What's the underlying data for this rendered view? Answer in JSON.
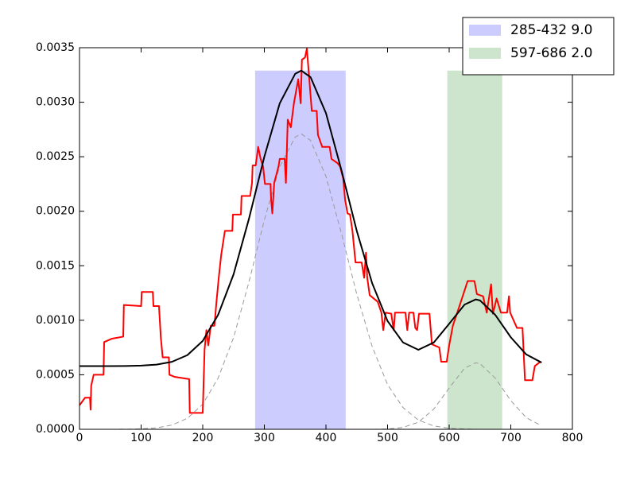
{
  "chart_data": {
    "type": "line",
    "xlim": [
      0,
      800
    ],
    "xticks": [
      0,
      100,
      200,
      300,
      400,
      500,
      600,
      700,
      800
    ],
    "ylim": [
      0,
      0.0035
    ],
    "yticks": [
      {
        "value": 0,
        "label": "0.0000"
      },
      {
        "value": 0.0005,
        "label": "0.0005"
      },
      {
        "value": 0.001,
        "label": "0.0010"
      },
      {
        "value": 0.0015,
        "label": "0.0015"
      },
      {
        "value": 0.002,
        "label": "0.0020"
      },
      {
        "value": 0.0025,
        "label": "0.0025"
      },
      {
        "value": 0.003,
        "label": "0.0030"
      },
      {
        "value": 0.0035,
        "label": "0.0035"
      }
    ],
    "legend": "upper right",
    "spans": [
      {
        "name": "285-432 9.0",
        "start": 285,
        "end": 432,
        "ymax": 0.00329,
        "color": "#ccccff"
      },
      {
        "name": "597-686 2.0",
        "start": 597,
        "end": 686,
        "ymax": 0.00329,
        "color": "#cce5cc"
      }
    ],
    "series": [
      {
        "color": "#999999",
        "style": "dashed",
        "x": [
          0,
          25,
          50,
          75,
          100,
          125,
          150,
          175,
          200,
          225,
          250,
          275,
          300,
          325,
          350,
          360,
          375,
          400,
          425,
          450,
          475,
          500,
          525,
          550,
          575,
          600,
          625,
          643,
          650,
          675,
          700,
          725,
          750
        ],
        "values": [
          0,
          0,
          0,
          1e-06,
          4e-06,
          1.3e-05,
          3.9e-05,
          0.0001,
          0.00023,
          0.00047,
          0.00084,
          0.00135,
          0.00192,
          0.00241,
          0.00268,
          0.00271,
          0.00265,
          0.00232,
          0.0018,
          0.00124,
          0.00076,
          0.00041,
          0.0002,
          8.4e-05,
          3.1e-05,
          1e-05,
          3e-06,
          1e-06,
          0,
          0,
          0,
          0,
          0
        ]
      },
      {
        "color": "#999999",
        "style": "dashed",
        "x": [
          0,
          25,
          50,
          75,
          100,
          125,
          150,
          175,
          200,
          225,
          250,
          275,
          300,
          325,
          350,
          360,
          375,
          400,
          425,
          450,
          475,
          500,
          525,
          550,
          575,
          600,
          625,
          643,
          650,
          675,
          700,
          725,
          750
        ],
        "values": [
          0,
          0,
          0,
          0,
          0,
          0,
          0,
          0,
          0,
          0,
          0,
          0,
          0,
          0,
          0,
          0,
          0,
          0,
          0,
          0,
          0,
          3e-06,
          1.7e-05,
          6.5e-05,
          0.000185,
          0.000378,
          0.000561,
          0.00061,
          0.000602,
          0.000468,
          0.000264,
          0.000107,
          3.2e-05
        ]
      },
      {
        "color": "#ff0000",
        "style": "solid",
        "width": 2,
        "x": [
          0,
          9,
          17,
          18,
          19,
          23,
          39,
          40,
          52,
          71,
          72,
          100,
          101,
          119,
          120,
          129,
          132,
          135,
          145,
          146,
          155,
          178,
          179,
          200,
          203,
          206,
          209,
          213,
          219,
          222,
          226,
          230,
          236,
          248,
          249,
          262,
          263,
          277,
          280,
          281,
          286,
          290,
          294,
          298,
          301,
          310,
          311,
          313,
          316,
          323,
          325,
          333,
          335,
          338,
          343,
          348,
          355,
          359,
          361,
          366,
          369,
          372,
          377,
          385,
          387,
          394,
          406,
          409,
          419,
          423,
          428,
          431,
          435,
          439,
          443,
          448,
          458,
          462,
          465,
          467,
          471,
          484,
          490,
          493,
          497,
          506,
          510,
          512,
          529,
          532,
          535,
          542,
          545,
          548,
          551,
          568,
          572,
          584,
          587,
          596,
          600,
          606,
          619,
          630,
          641,
          645,
          655,
          661,
          668,
          671,
          677,
          684,
          694,
          697,
          699,
          710,
          719,
          723,
          735,
          739,
          748
        ],
        "values": [
          0.00022,
          0.00029,
          0.00029,
          0.00018,
          0.0004,
          0.0005,
          0.0005,
          0.0008,
          0.00083,
          0.00085,
          0.00114,
          0.00113,
          0.00126,
          0.00126,
          0.00113,
          0.00113,
          0.00084,
          0.00066,
          0.00066,
          0.0005,
          0.00048,
          0.00046,
          0.00015,
          0.00015,
          0.00073,
          0.00091,
          0.00077,
          0.00095,
          0.00095,
          0.00115,
          0.00139,
          0.0016,
          0.00182,
          0.00182,
          0.00197,
          0.00197,
          0.00214,
          0.00214,
          0.00226,
          0.00242,
          0.00242,
          0.00259,
          0.00248,
          0.00241,
          0.00225,
          0.00225,
          0.00211,
          0.00198,
          0.00226,
          0.00241,
          0.00248,
          0.00248,
          0.00226,
          0.00284,
          0.00277,
          0.00299,
          0.00321,
          0.00299,
          0.00339,
          0.00341,
          0.00349,
          0.00328,
          0.00292,
          0.00292,
          0.0027,
          0.00259,
          0.00259,
          0.00248,
          0.00244,
          0.00241,
          0.0023,
          0.00211,
          0.00198,
          0.00197,
          0.00182,
          0.00153,
          0.00153,
          0.00139,
          0.00162,
          0.00139,
          0.00123,
          0.00117,
          0.00107,
          0.00091,
          0.00107,
          0.00106,
          0.00091,
          0.00107,
          0.00107,
          0.00091,
          0.00107,
          0.00107,
          0.00093,
          0.00091,
          0.00106,
          0.00106,
          0.00078,
          0.00075,
          0.00062,
          0.00062,
          0.00077,
          0.00095,
          0.00117,
          0.00136,
          0.00136,
          0.00124,
          0.00122,
          0.00107,
          0.00133,
          0.00106,
          0.0012,
          0.00107,
          0.00107,
          0.00122,
          0.00107,
          0.00093,
          0.00093,
          0.00045,
          0.00045,
          0.00058,
          0.00062
        ]
      },
      {
        "color": "#000000",
        "style": "solid",
        "width": 2,
        "x": [
          0,
          25,
          50,
          75,
          100,
          125,
          150,
          175,
          200,
          225,
          250,
          275,
          300,
          325,
          350,
          360,
          375,
          400,
          425,
          450,
          475,
          500,
          525,
          550,
          575,
          600,
          625,
          643,
          650,
          675,
          700,
          725,
          750
        ],
        "values": [
          0.00058,
          0.00058,
          0.00058,
          0.000581,
          0.000584,
          0.000593,
          0.000619,
          0.00068,
          0.00081,
          0.00105,
          0.00142,
          0.00193,
          0.0025,
          0.00299,
          0.00326,
          0.00329,
          0.00323,
          0.0029,
          0.00238,
          0.00182,
          0.00134,
          0.000993,
          0.000797,
          0.000729,
          0.000796,
          0.000968,
          0.001144,
          0.001191,
          0.001182,
          0.001048,
          0.000844,
          0.000687,
          0.000612
        ]
      }
    ]
  }
}
